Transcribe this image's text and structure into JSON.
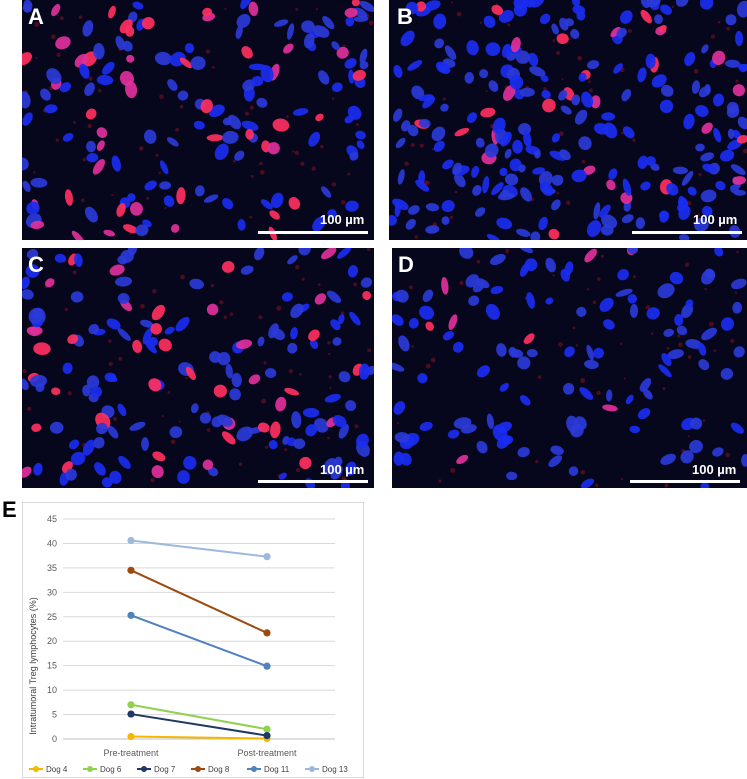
{
  "panels": [
    {
      "label": "A",
      "scale": "100 µm"
    },
    {
      "label": "B",
      "scale": "100 µm"
    },
    {
      "label": "C",
      "scale": "100 µm"
    },
    {
      "label": "D",
      "scale": "100 µm"
    }
  ],
  "chart_label": "E",
  "chart_data": {
    "type": "line",
    "categories": [
      "Pre-treatment",
      "Post-treatment"
    ],
    "ylabel": "Intratumoral Treg lymphocytes (%)",
    "ylim": [
      0,
      45
    ],
    "yticks": [
      0,
      5,
      10,
      15,
      20,
      25,
      30,
      35,
      40,
      45
    ],
    "grid": true,
    "legend": "bottom",
    "series": [
      {
        "name": "Dog 4",
        "values": [
          0.5,
          0.1
        ],
        "color": "#f5b800"
      },
      {
        "name": "Dog 6",
        "values": [
          7.0,
          2.0
        ],
        "color": "#92d050"
      },
      {
        "name": "Dog 7",
        "values": [
          5.1,
          0.7
        ],
        "color": "#1f3864"
      },
      {
        "name": "Dog 8",
        "values": [
          34.5,
          21.7
        ],
        "color": "#9c4a10"
      },
      {
        "name": "Dog 11",
        "values": [
          25.3,
          14.9
        ],
        "color": "#4f81bd"
      },
      {
        "name": "Dog 13",
        "values": [
          40.6,
          37.3
        ],
        "color": "#9db9d9"
      }
    ]
  }
}
